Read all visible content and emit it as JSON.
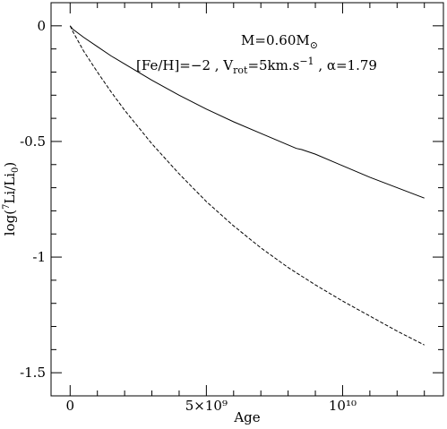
{
  "chart_data": {
    "type": "line",
    "title": "",
    "xlabel": "Age",
    "ylabel": "log(⁷Li/Li₀)",
    "xlim": [
      -700000000.0,
      13700000000.0
    ],
    "ylim": [
      -1.6,
      0.1
    ],
    "grid": false,
    "x_ticks": [
      {
        "value": 0,
        "label": "0"
      },
      {
        "value": 5000000000.0,
        "label": "5×10⁹"
      },
      {
        "value": 10000000000.0,
        "label": "10¹⁰"
      }
    ],
    "y_ticks": [
      {
        "value": 0,
        "label": "0"
      },
      {
        "value": -0.5,
        "label": "-0.5"
      },
      {
        "value": -1,
        "label": "-1"
      },
      {
        "value": -1.5,
        "label": "-1.5"
      }
    ],
    "annotations": {
      "line1": "M=0.60M⊙",
      "line2": "[Fe/H]=−2 ,  Vrot=5km.s⁻¹ ,  α=1.79"
    },
    "series": [
      {
        "style": "solid",
        "color": "#000000",
        "x": [
          0,
          100000000.0,
          500000000.0,
          1000000000.0,
          1500000000.0,
          2000000000.0,
          3000000000.0,
          4000000000.0,
          5000000000.0,
          6000000000.0,
          7000000000.0,
          8000000000.0,
          8300000000.0,
          8500000000.0,
          9000000000.0,
          10000000000.0,
          11000000000.0,
          12000000000.0,
          13000000000.0
        ],
        "y": [
          0,
          -0.015,
          -0.05,
          -0.09,
          -0.13,
          -0.165,
          -0.235,
          -0.3,
          -0.36,
          -0.415,
          -0.465,
          -0.515,
          -0.53,
          -0.535,
          -0.555,
          -0.605,
          -0.655,
          -0.7,
          -0.745
        ]
      },
      {
        "style": "dashed",
        "color": "#000000",
        "x": [
          0,
          100000000.0,
          500000000.0,
          1000000000.0,
          1500000000.0,
          2000000000.0,
          3000000000.0,
          4000000000.0,
          5000000000.0,
          6000000000.0,
          7000000000.0,
          8000000000.0,
          9000000000.0,
          10000000000.0,
          11000000000.0,
          12000000000.0,
          13000000000.0
        ],
        "y": [
          0,
          -0.025,
          -0.11,
          -0.2,
          -0.285,
          -0.365,
          -0.51,
          -0.64,
          -0.76,
          -0.865,
          -0.96,
          -1.045,
          -1.12,
          -1.19,
          -1.255,
          -1.32,
          -1.38
        ]
      }
    ]
  }
}
